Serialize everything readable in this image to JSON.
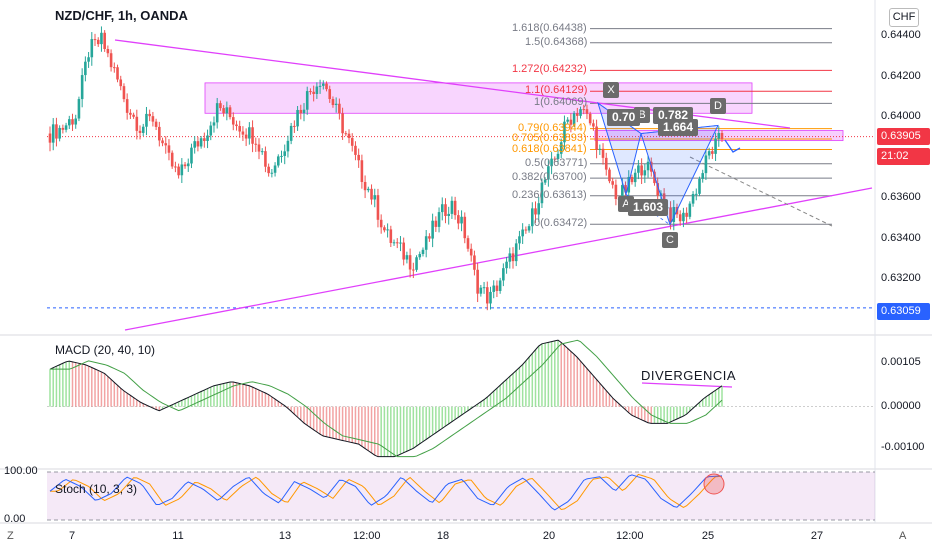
{
  "header": {
    "title": "NZD/CHF, 1h, OANDA",
    "currency_unit": "CHF"
  },
  "price_badges": {
    "current": "0.63905",
    "countdown": "21:02",
    "support": "0.63059",
    "current_color": "#f23645",
    "support_color": "#2962ff"
  },
  "bottom_bar": {
    "left_label": "Z",
    "right_label": "A"
  },
  "indicators": {
    "macd_label": "MACD (20, 40, 10)",
    "stoch_label": "Stoch (10, 3, 3)",
    "divergence_label": "DIVERGENCIA"
  },
  "pattern": {
    "points": [
      "X",
      "A",
      "B",
      "C",
      "D"
    ],
    "ratios": [
      "0.70",
      "0.782",
      "1.664",
      "1.603"
    ]
  },
  "chart_data": [
    {
      "type": "line",
      "name": "price",
      "x_tick_labels": [
        "7",
        "11",
        "13",
        "12:00",
        "18",
        "20",
        "12:00",
        "25",
        "27"
      ],
      "y_tick_labels": [
        "0.64400",
        "0.64200",
        "0.64000",
        "0.63600",
        "0.63400",
        "0.63200"
      ],
      "ylim": [
        0.6295,
        0.6452
      ],
      "close_path": [
        0.6392,
        0.6395,
        0.6401,
        0.6433,
        0.6438,
        0.6422,
        0.6405,
        0.6395,
        0.64,
        0.6381,
        0.637,
        0.6384,
        0.6392,
        0.6405,
        0.64,
        0.6394,
        0.639,
        0.6372,
        0.6385,
        0.64,
        0.6412,
        0.642,
        0.6405,
        0.639,
        0.6373,
        0.636,
        0.6342,
        0.6335,
        0.6328,
        0.6336,
        0.635,
        0.6358,
        0.6345,
        0.6318,
        0.631,
        0.6322,
        0.6335,
        0.6345,
        0.6365,
        0.6378,
        0.6398,
        0.6405,
        0.6395,
        0.6372,
        0.636,
        0.6368,
        0.6378,
        0.6365,
        0.6352,
        0.635,
        0.6365,
        0.6382,
        0.639
      ],
      "fibonacci_levels": [
        {
          "ratio": "1.618",
          "price": "0.64438"
        },
        {
          "ratio": "1.5",
          "price": "0.64368"
        },
        {
          "ratio": "1.272",
          "price": "0.64232"
        },
        {
          "ratio": "1.1",
          "price": "0.64129"
        },
        {
          "ratio": "1",
          "price": "0.64069"
        },
        {
          "ratio": "0.79",
          "price": "0.63944"
        },
        {
          "ratio": "0.705",
          "price": "0.63893"
        },
        {
          "ratio": "0.618",
          "price": "0.63841"
        },
        {
          "ratio": "0.5",
          "price": "0.63771"
        },
        {
          "ratio": "0.382",
          "price": "0.63700"
        },
        {
          "ratio": "0.236",
          "price": "0.63613"
        },
        {
          "ratio": "0",
          "price": "0.63472"
        }
      ],
      "current_price": 0.63905,
      "support_line": 0.63059,
      "pattern_prices": {
        "X": 0.6407,
        "A": 0.6362,
        "B": 0.6392,
        "C": 0.6347,
        "D": 0.6396
      }
    },
    {
      "type": "bar",
      "name": "MACD",
      "y_tick_labels": [
        "0.00105",
        "0.00000",
        "-0.00100"
      ],
      "ylim": [
        -0.0014,
        0.0016
      ],
      "histogram_path": [
        0.0009,
        0.0011,
        0.001,
        0.0008,
        0.0004,
        0.0001,
        -0.0001,
        0.0001,
        0.0003,
        0.0005,
        0.0006,
        0.0005,
        0.0003,
        0.0,
        -0.0004,
        -0.0007,
        -0.0008,
        -0.0009,
        -0.0012,
        -0.0012,
        -0.001,
        -0.0007,
        -0.0004,
        -0.0001,
        0.0002,
        0.0006,
        0.001,
        0.0015,
        0.0016,
        0.0012,
        0.0007,
        0.0002,
        -0.0002,
        -0.0004,
        -0.0004,
        -0.0002,
        0.0002,
        0.0005
      ]
    },
    {
      "type": "line",
      "name": "Stoch",
      "y_tick_labels": [
        "100.00",
        "0.00"
      ],
      "ylim": [
        0,
        100
      ],
      "k_path": [
        60,
        85,
        70,
        40,
        55,
        90,
        75,
        30,
        45,
        80,
        65,
        40,
        70,
        90,
        55,
        35,
        80,
        65,
        45,
        85,
        70,
        30,
        50,
        90,
        60,
        35,
        75,
        85,
        45,
        30,
        70,
        88,
        55,
        20,
        40,
        85,
        90,
        60,
        95,
        85,
        45,
        25,
        55,
        90,
        92
      ]
    }
  ]
}
